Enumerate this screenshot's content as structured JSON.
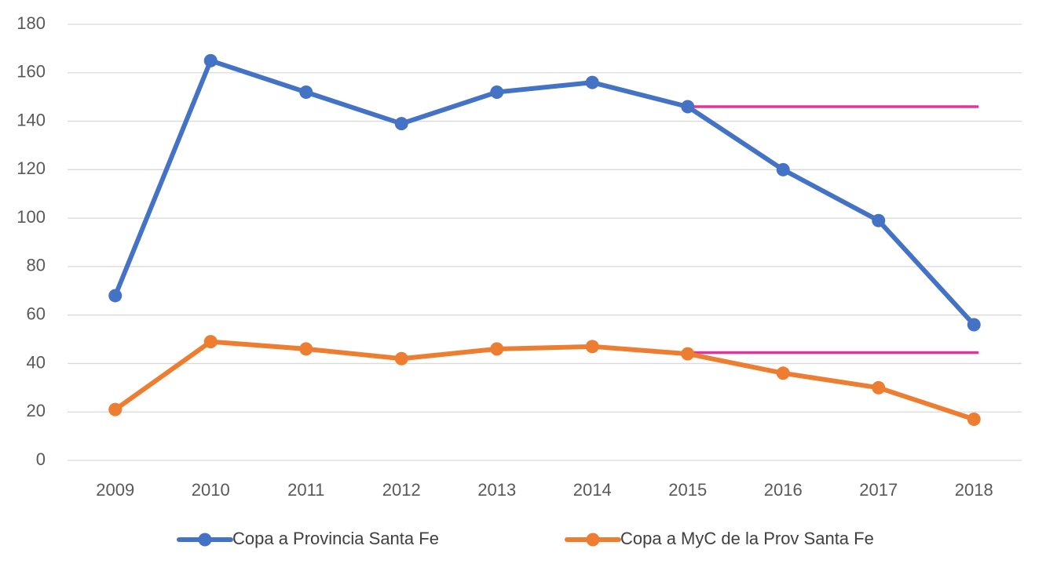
{
  "chart_data": {
    "type": "line",
    "title": "",
    "xlabel": "",
    "ylabel": "",
    "categories": [
      "2009",
      "2010",
      "2011",
      "2012",
      "2013",
      "2014",
      "2015",
      "2016",
      "2017",
      "2018"
    ],
    "ylim": [
      0,
      180
    ],
    "yticks": [
      0,
      20,
      40,
      60,
      80,
      100,
      120,
      140,
      160,
      180
    ],
    "grid": true,
    "legend_position": "bottom",
    "series": [
      {
        "name": "Copa a Provincia Santa Fe",
        "color": "#4472C4",
        "values": [
          68,
          165,
          152,
          139,
          152,
          156,
          146,
          120,
          99,
          56
        ]
      },
      {
        "name": "Copa a MyC de la Prov Santa Fe",
        "color": "#ED7D31",
        "values": [
          21,
          49,
          46,
          42,
          46,
          47,
          44,
          36,
          30,
          17
        ]
      }
    ],
    "reference_lines": [
      {
        "y": 146,
        "from": "2015",
        "to": "2018",
        "color": "#E0359E"
      },
      {
        "y": 44.5,
        "from": "2015",
        "to": "2018",
        "color": "#E0359E"
      }
    ]
  }
}
